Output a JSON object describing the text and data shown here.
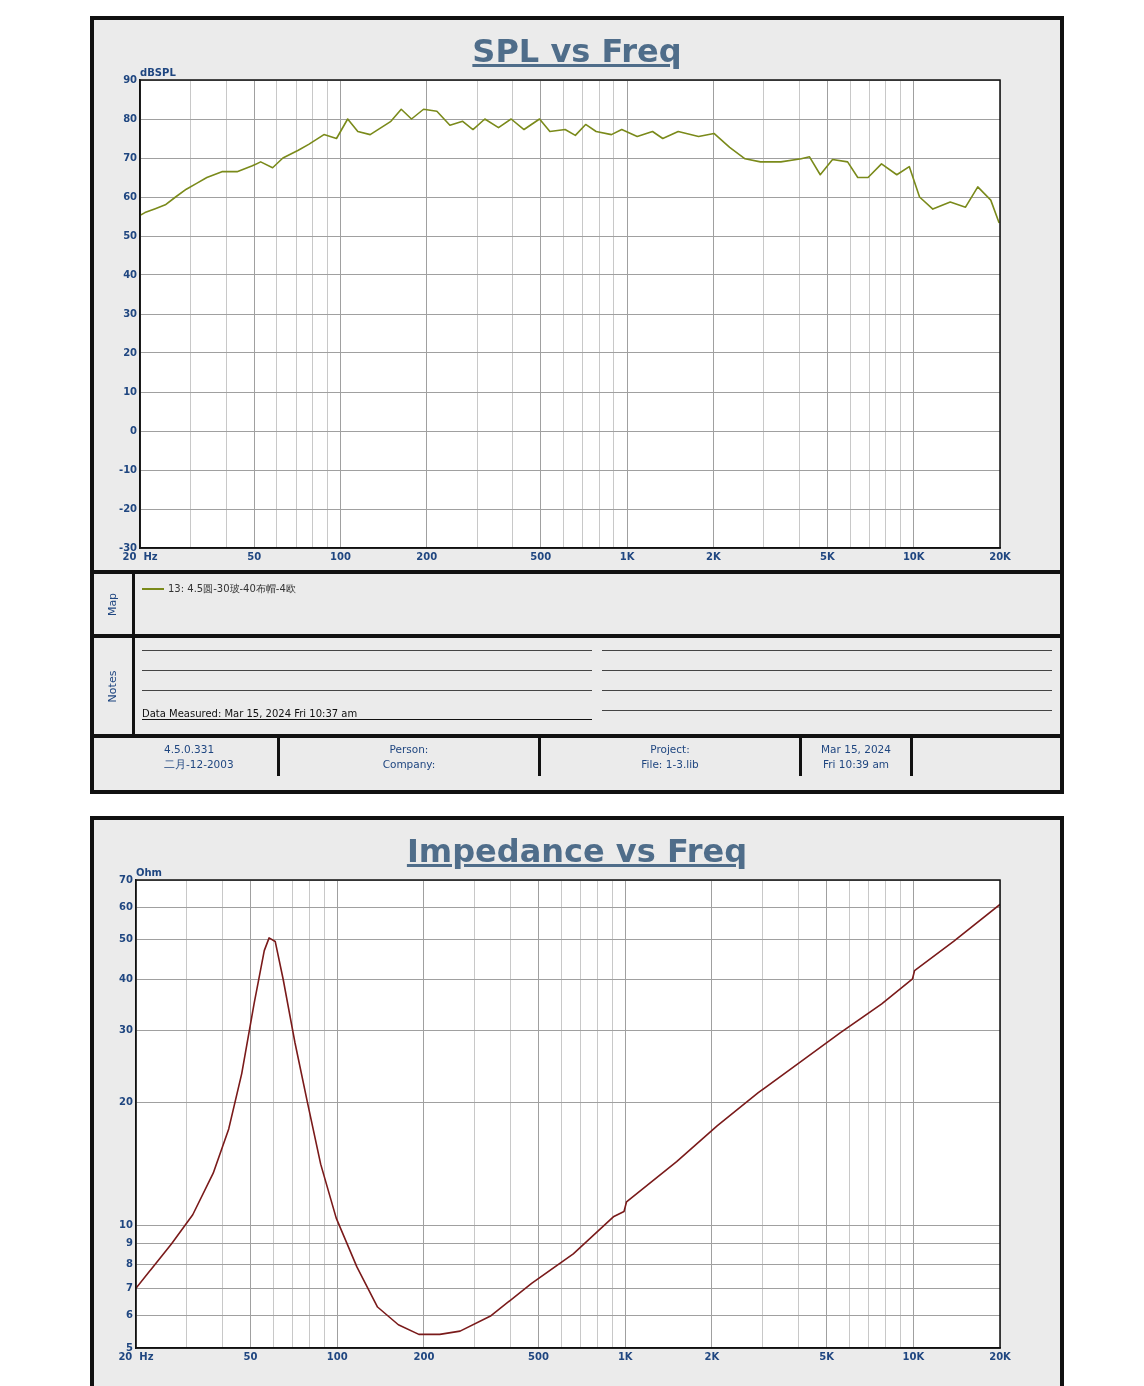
{
  "chart_data": [
    {
      "type": "line",
      "title": "SPL vs Freq",
      "ylabel": "dBSPL",
      "log": "x",
      "grid": true,
      "legend": "bottom",
      "marker": "none",
      "line_style": "solid",
      "xlim": [
        20,
        20000
      ],
      "xticks": [
        {
          "value": 20,
          "label": "20  Hz"
        },
        {
          "value": 30,
          "label": null
        },
        {
          "value": 40,
          "label": null
        },
        50,
        {
          "value": 60,
          "label": null
        },
        {
          "value": 70,
          "label": null
        },
        {
          "value": 80,
          "label": null
        },
        {
          "value": 90,
          "label": null
        },
        100,
        200,
        {
          "value": 300,
          "label": null
        },
        {
          "value": 400,
          "label": null
        },
        500,
        {
          "value": 600,
          "label": null
        },
        {
          "value": 700,
          "label": null
        },
        {
          "value": 800,
          "label": null
        },
        {
          "value": 900,
          "label": null
        },
        {
          "value": 1000,
          "label": "1K"
        },
        {
          "value": 2000,
          "label": "2K"
        },
        {
          "value": 3000,
          "label": null
        },
        {
          "value": 4000,
          "label": null
        },
        {
          "value": 5000,
          "label": "5K"
        },
        {
          "value": 6000,
          "label": null
        },
        {
          "value": 7000,
          "label": null
        },
        {
          "value": 8000,
          "label": null
        },
        {
          "value": 9000,
          "label": null
        },
        {
          "value": 10000,
          "label": "10K"
        },
        {
          "value": 20000,
          "label": "20K"
        }
      ],
      "ylim": [
        -30,
        90
      ],
      "yticks": [
        -30,
        -20,
        -10,
        0,
        10,
        20,
        30,
        40,
        50,
        60,
        70,
        80,
        90
      ],
      "annotations": [
        "Map",
        "Notes",
        "Data Measured: Mar 15, 2024  Fri 10:37 am",
        "4.5.0.331",
        "二月-12-2003",
        "Person:",
        "Company:",
        "Project:",
        "File: 1-3.lib",
        "Mar 15, 2024",
        "Fri 10:39 am"
      ],
      "series": [
        {
          "name": "13: 4.5圆-30玻-40布帽-4欧",
          "color": "#7a8a1a",
          "x": [
            20,
            20.8,
            22.6,
            24.5,
            26.6,
            29,
            31.5,
            34.2,
            38.6,
            43.6,
            49.3,
            52.7,
            58,
            63,
            71.3,
            77.5,
            87.6,
            96.9,
            106,
            115,
            127,
            150,
            163,
            177,
            195,
            217,
            241,
            267,
            290,
            319,
            356,
            394,
            437,
            495,
            538,
            608,
            660,
            717,
            780,
            882,
            958,
            1085,
            1227,
            1332,
            1508,
            1776,
            2010,
            2280,
            2580,
            2920,
            3440,
            4050,
            4330,
            4720,
            5210,
            5880,
            6380,
            6930,
            7720,
            8730,
            9650,
            10480,
            11660,
            13410,
            15160,
            16730,
            18570,
            19820
          ],
          "values": [
            55.3,
            56,
            57,
            58,
            60,
            62,
            63.5,
            65,
            66.5,
            66.5,
            68,
            69,
            67.5,
            70,
            72,
            73.5,
            76,
            75,
            80,
            76.8,
            76,
            79.4,
            82.5,
            80,
            82.5,
            82,
            78.4,
            79.4,
            77.3,
            80,
            77.8,
            80,
            77.3,
            80,
            76.8,
            77.3,
            75.8,
            78.6,
            76.8,
            76,
            77.3,
            75.5,
            76.8,
            75,
            76.8,
            75.5,
            76.3,
            72.7,
            69.8,
            69,
            69,
            69.8,
            70.3,
            65.7,
            69.6,
            69,
            65,
            65,
            68.5,
            65.7,
            67.8,
            60,
            56.9,
            58.7,
            57.4,
            62.6,
            59.2,
            53.5
          ]
        }
      ]
    },
    {
      "type": "line",
      "title": "Impedance vs Freq",
      "ylabel": "Ohm",
      "log": "xy",
      "grid": true,
      "marker": "none",
      "line_style": "solid",
      "xlim": [
        20,
        20000
      ],
      "xticks": [
        {
          "value": 20,
          "label": "20  Hz"
        },
        {
          "value": 30,
          "label": null
        },
        {
          "value": 40,
          "label": null
        },
        50,
        {
          "value": 60,
          "label": null
        },
        {
          "value": 70,
          "label": null
        },
        {
          "value": 80,
          "label": null
        },
        {
          "value": 90,
          "label": null
        },
        100,
        200,
        {
          "value": 300,
          "label": null
        },
        {
          "value": 400,
          "label": null
        },
        500,
        {
          "value": 600,
          "label": null
        },
        {
          "value": 700,
          "label": null
        },
        {
          "value": 800,
          "label": null
        },
        {
          "value": 900,
          "label": null
        },
        {
          "value": 1000,
          "label": "1K"
        },
        {
          "value": 2000,
          "label": "2K"
        },
        {
          "value": 3000,
          "label": null
        },
        {
          "value": 4000,
          "label": null
        },
        {
          "value": 5000,
          "label": "5K"
        },
        {
          "value": 6000,
          "label": null
        },
        {
          "value": 7000,
          "label": null
        },
        {
          "value": 8000,
          "label": null
        },
        {
          "value": 9000,
          "label": null
        },
        {
          "value": 10000,
          "label": "10K"
        },
        {
          "value": 20000,
          "label": "20K"
        }
      ],
      "ylim": [
        5,
        70
      ],
      "yticks": [
        5,
        6,
        7,
        8,
        9,
        10,
        20,
        30,
        40,
        50,
        60,
        70
      ],
      "series": [
        {
          "color": "#7a1a1a",
          "x": [
            20,
            22.6,
            26.6,
            31.5,
            37.1,
            42,
            46.6,
            51.5,
            55.8,
            58,
            60.9,
            64.9,
            71.3,
            78.9,
            87.6,
            99.2,
            117,
            138,
            163,
            192,
            227,
            267,
            342,
            473,
            660,
            913,
            990,
            1010,
            1508,
            2084,
            2896,
            4026,
            5587,
            7770,
            9940,
            10100,
            13800,
            20000
          ],
          "values": [
            7,
            7.8,
            9,
            10.6,
            13.4,
            17.2,
            23.5,
            35,
            47,
            50.5,
            49.5,
            40,
            28,
            19.9,
            14.1,
            10.4,
            7.9,
            6.3,
            5.7,
            5.4,
            5.4,
            5.5,
            6,
            7.2,
            8.5,
            10.5,
            10.8,
            11.4,
            14.3,
            17.5,
            21.1,
            25,
            29.6,
            34.8,
            40.1,
            42,
            49.5,
            61
          ]
        }
      ]
    }
  ]
}
